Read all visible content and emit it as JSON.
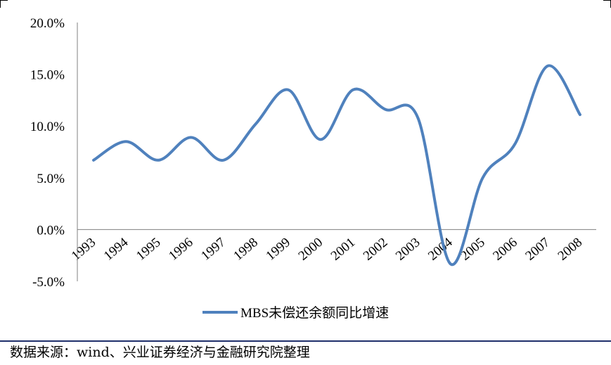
{
  "chart_data": {
    "type": "line",
    "title": "",
    "xlabel": "",
    "ylabel": "",
    "categories": [
      "1993",
      "1994",
      "1995",
      "1996",
      "1997",
      "1998",
      "1999",
      "2000",
      "2001",
      "2002",
      "2003",
      "2004",
      "2005",
      "2006",
      "2007",
      "2008"
    ],
    "series": [
      {
        "name": "MBS未偿还余额同比增速",
        "color": "#4f81bd",
        "values": [
          6.7,
          8.5,
          6.7,
          8.9,
          6.7,
          10.2,
          13.5,
          8.7,
          13.5,
          11.6,
          10.8,
          -3.3,
          5.0,
          8.3,
          15.8,
          11.1
        ]
      }
    ],
    "ylim": [
      -5,
      20
    ],
    "yticks": [
      "20.0%",
      "15.0%",
      "10.0%",
      "5.0%",
      "0.0%",
      "-5.0%"
    ],
    "ytick_values": [
      20,
      15,
      10,
      5,
      0,
      -5
    ],
    "grid": false,
    "legend": "bottom"
  },
  "source_note": "数据来源：wind、兴业证券经济与金融研究院整理"
}
